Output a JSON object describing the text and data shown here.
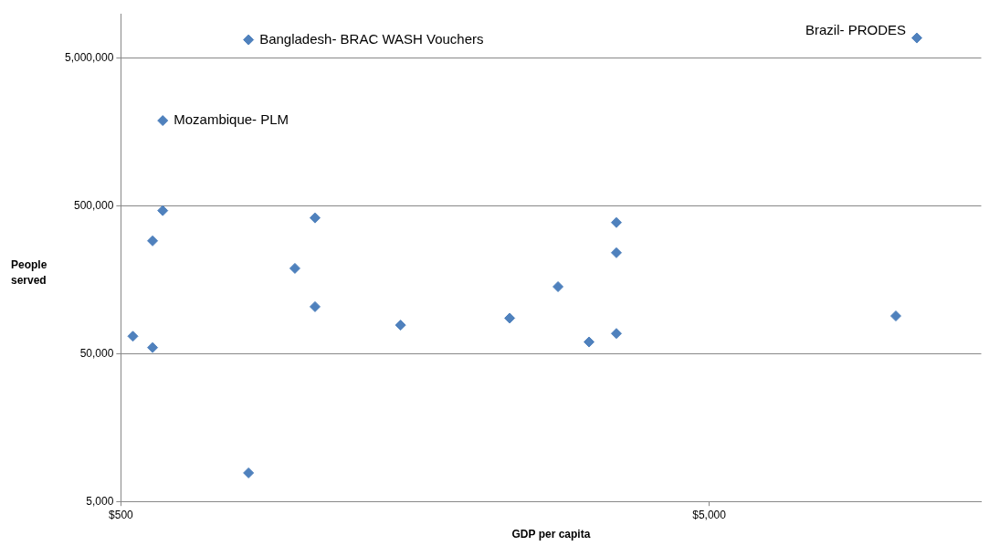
{
  "chart_data": {
    "type": "scatter",
    "xlabel": "GDP per capita",
    "ylabel": "People served",
    "x": [
      824,
      589,
      11270,
      589,
      566,
      1069,
      988,
      1069,
      1494,
      524,
      566,
      824,
      2290,
      2767,
      3124,
      3477,
      3477,
      3477,
      10380
    ],
    "series": [
      {
        "color": "#4f81bd",
        "values": [
          6660000,
          1890000,
          6850000,
          465000,
          290000,
          415000,
          189000,
          104000,
          78000,
          65600,
          55000,
          7800,
          87000,
          142000,
          60000,
          386000,
          241000,
          68500,
          90000
        ]
      }
    ],
    "xlim": [
      500,
      14500
    ],
    "ylim": [
      5000,
      10000000
    ],
    "xticks": [
      {
        "value": 500,
        "label": "$500"
      },
      {
        "value": 5000,
        "label": "$5,000"
      }
    ],
    "yticks": [
      {
        "value": 5000,
        "label": "5,000"
      },
      {
        "value": 50000,
        "label": "50,000"
      },
      {
        "value": 500000,
        "label": "500,000"
      },
      {
        "value": 5000000,
        "label": "5,000,000"
      }
    ],
    "log": "xy",
    "grid": "y",
    "legend": false,
    "marker": "diamond",
    "annotations": [
      {
        "text": "Bangladesh- BRAC WASH Vouchers",
        "x": 824,
        "y": 6660000
      },
      {
        "text": "Mozambique- PLM",
        "x": 589,
        "y": 1890000
      },
      {
        "text": "Brazil- PRODES",
        "x": 11270,
        "y": 6850000
      }
    ]
  }
}
